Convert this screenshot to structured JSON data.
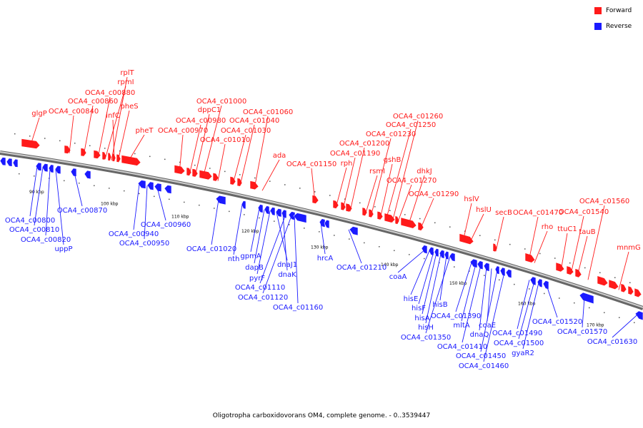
{
  "caption": "Oligotropha carboxidovorans OM4, complete genome. - 0..3539447",
  "legend": [
    {
      "label": "Forward",
      "color": "#ff1a1a"
    },
    {
      "label": "Reverse",
      "color": "#1a1aff"
    }
  ],
  "colors": {
    "forward": "#ff1a1a",
    "reverse": "#1a1aff",
    "axis": "#888888"
  },
  "ticks": [
    "90 kbp",
    "100 kbp",
    "110 kbp",
    "120 kbp",
    "130 kbp",
    "140 kbp",
    "150 kbp",
    "160 kbp",
    "170 kbp"
  ],
  "forward_genes": [
    "glgP",
    "OCA4_c00840",
    "OCA4_c00860",
    "OCA4_c00880",
    "rpmI",
    "rplT",
    "infC",
    "pheS",
    "pheT",
    "OCA4_c00970",
    "OCA4_c00980",
    "dppC1",
    "OCA4_c01000",
    "OCA4_c01010",
    "OCA4_c01030",
    "OCA4_c01040",
    "OCA4_c01060",
    "ada",
    "OCA4_c01150",
    "rph",
    "OCA4_c01190",
    "OCA4_c01200",
    "rsmI",
    "OCA4_c01230",
    "gshB",
    "OCA4_c01250",
    "OCA4_c01260",
    "OCA4_c01270",
    "dhkJ",
    "OCA4_c01290",
    "hslV",
    "hslU",
    "secB",
    "OCA4_c01470",
    "rho",
    "ttuC1",
    "OCA4_c01540",
    "tauB",
    "OCA4_c01560",
    "mnmG"
  ],
  "reverse_genes": [
    "OCA4_c00800",
    "OCA4_c00810",
    "OCA4_c00820",
    "uppP",
    "OCA4_c00870",
    "OCA4_c00940",
    "OCA4_c00950",
    "OCA4_c00960",
    "OCA4_c01020",
    "nth",
    "gpmA",
    "dapB",
    "pyrF",
    "dnaJ1",
    "dnaK",
    "OCA4_c01110",
    "OCA4_c01120",
    "OCA4_c01160",
    "hrcA",
    "OCA4_c01210",
    "coaA",
    "hisE",
    "hisF",
    "hisA",
    "hisH",
    "hisB",
    "OCA4_c01350",
    "OCA4_c01390",
    "mltA",
    "OCA4_c01410",
    "dnaQ",
    "coaE",
    "OCA4_c01450",
    "OCA4_c01460",
    "OCA4_c01490",
    "OCA4_c01500",
    "gyaR2",
    "OCA4_c01520",
    "OCA4_c01570",
    "OCA4_c01630"
  ]
}
